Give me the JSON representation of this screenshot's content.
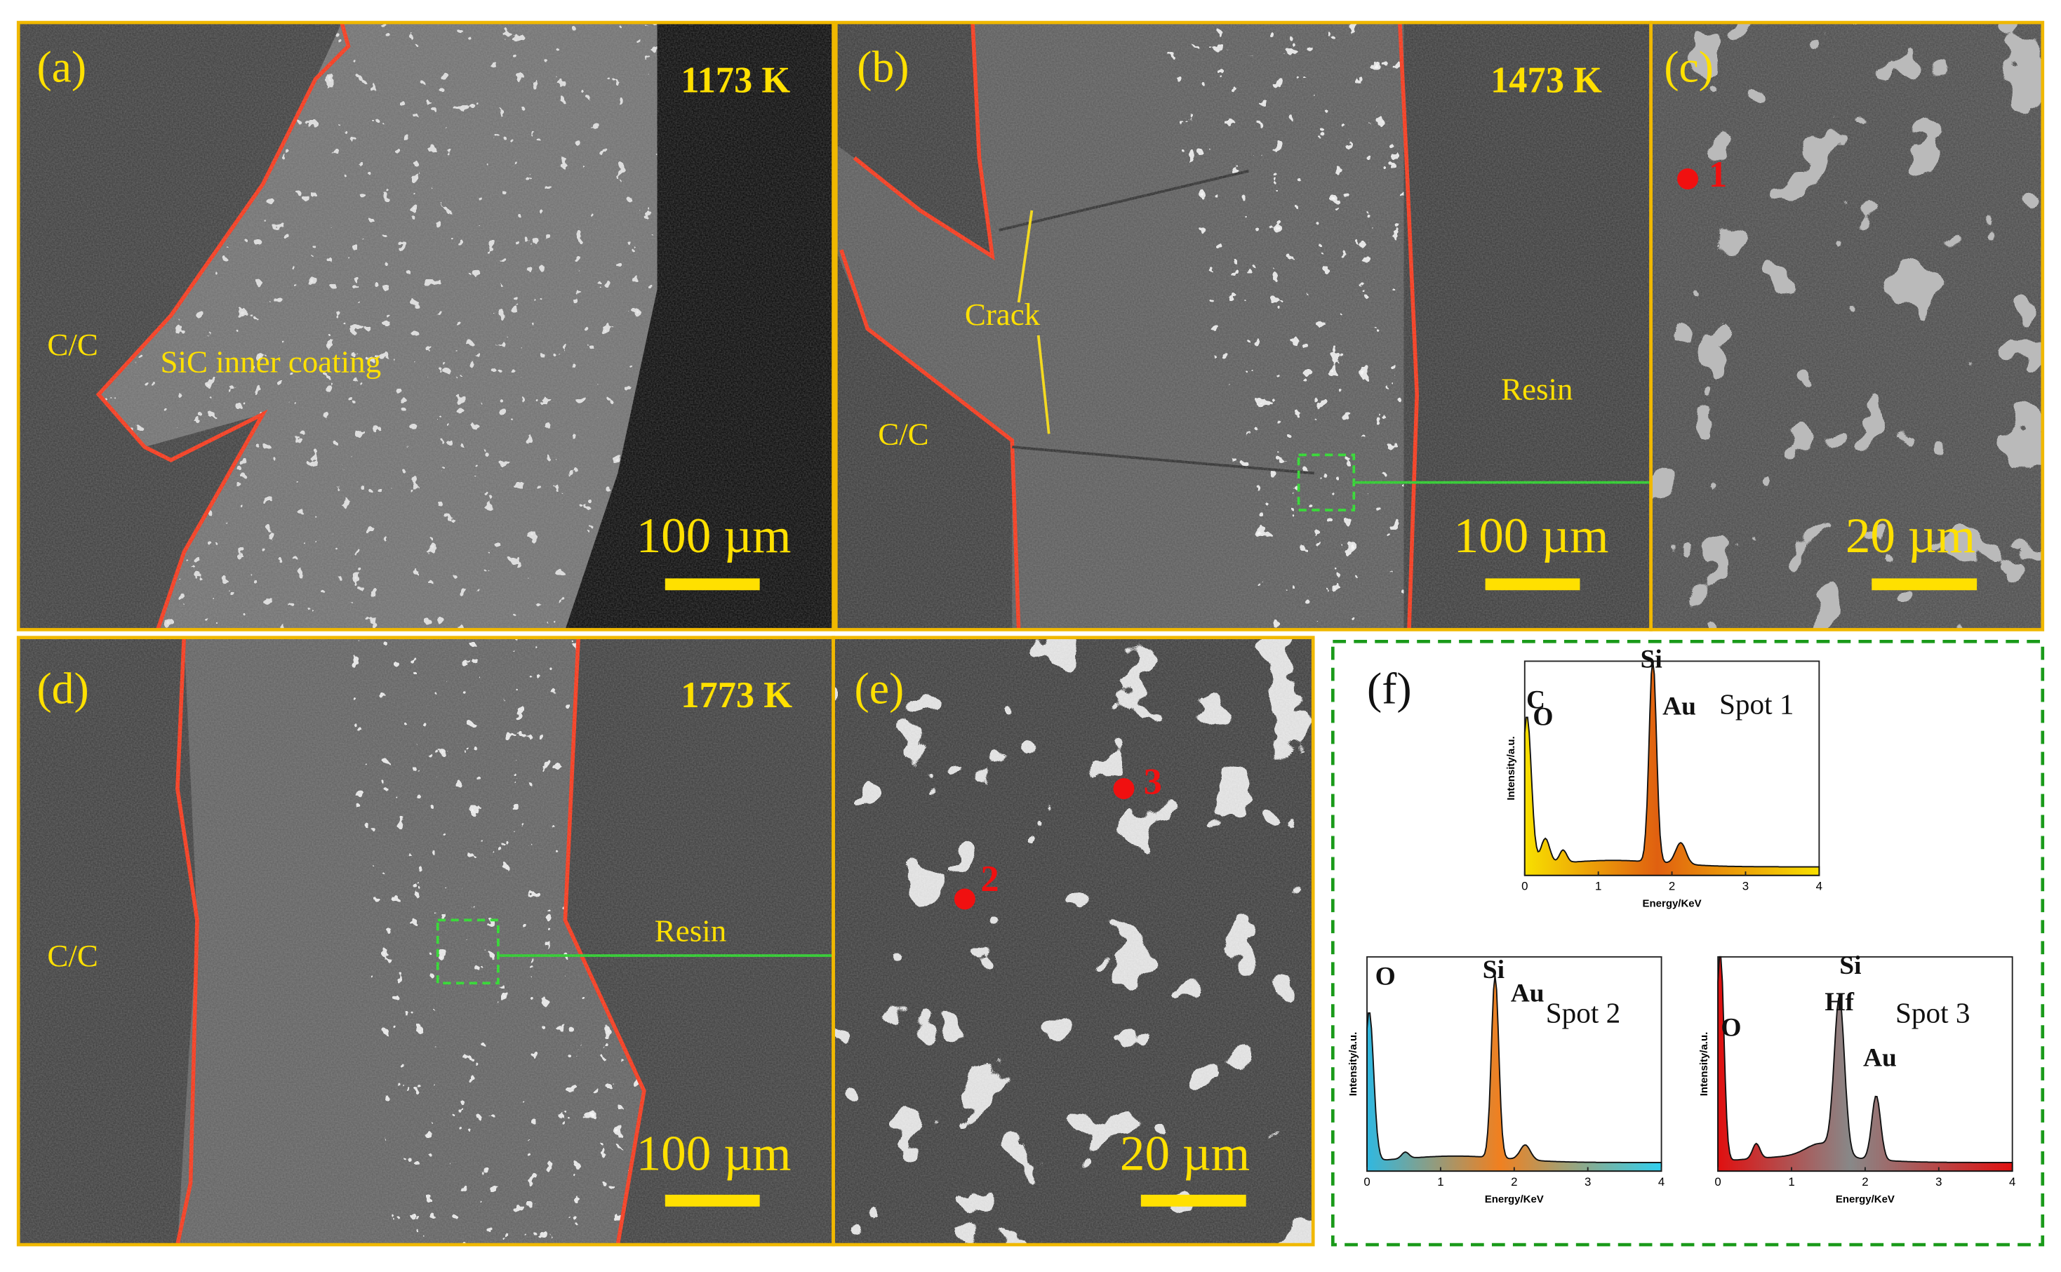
{
  "panels": [
    {
      "label": "(a)",
      "temperature": "1173 K",
      "annotations": [
        "C/C",
        "SiC inner coating"
      ],
      "scale_bar": "100 µm"
    },
    {
      "label": "(b)",
      "temperature": "1473 K",
      "annotations": [
        "Crack",
        "C/C",
        "Resin"
      ],
      "scale_bar": "100 µm"
    },
    {
      "label": "(c)",
      "annotations": [
        "1"
      ],
      "scale_bar": "20 µm"
    },
    {
      "label": "(d)",
      "temperature": "1773 K",
      "annotations": [
        "C/C",
        "Resin"
      ],
      "scale_bar": "100 µm"
    },
    {
      "label": "(e)",
      "annotations": [
        "2",
        "3"
      ],
      "scale_bar": "20 µm"
    },
    {
      "label": "(f)",
      "spectra": [
        {
          "name": "Spot 1",
          "peaks": [
            "Si",
            "O",
            "C",
            "Au"
          ],
          "x_label": "Energy/KeV",
          "y_label": "Intensity/a.u.",
          "xticks": [
            0,
            1,
            2,
            3,
            4
          ]
        },
        {
          "name": "Spot 2",
          "peaks": [
            "Si",
            "O",
            "Au"
          ],
          "x_label": "Energy/KeV",
          "y_label": "Intensity/a.u.",
          "xticks": [
            0,
            1,
            2,
            3,
            4
          ]
        },
        {
          "name": "Spot 3",
          "peaks": [
            "Si",
            "Hf",
            "O",
            "Au"
          ],
          "x_label": "Energy/KeV",
          "y_label": "Intensity/a.u.",
          "xticks": [
            0,
            1,
            2,
            3,
            4
          ]
        }
      ]
    }
  ]
}
